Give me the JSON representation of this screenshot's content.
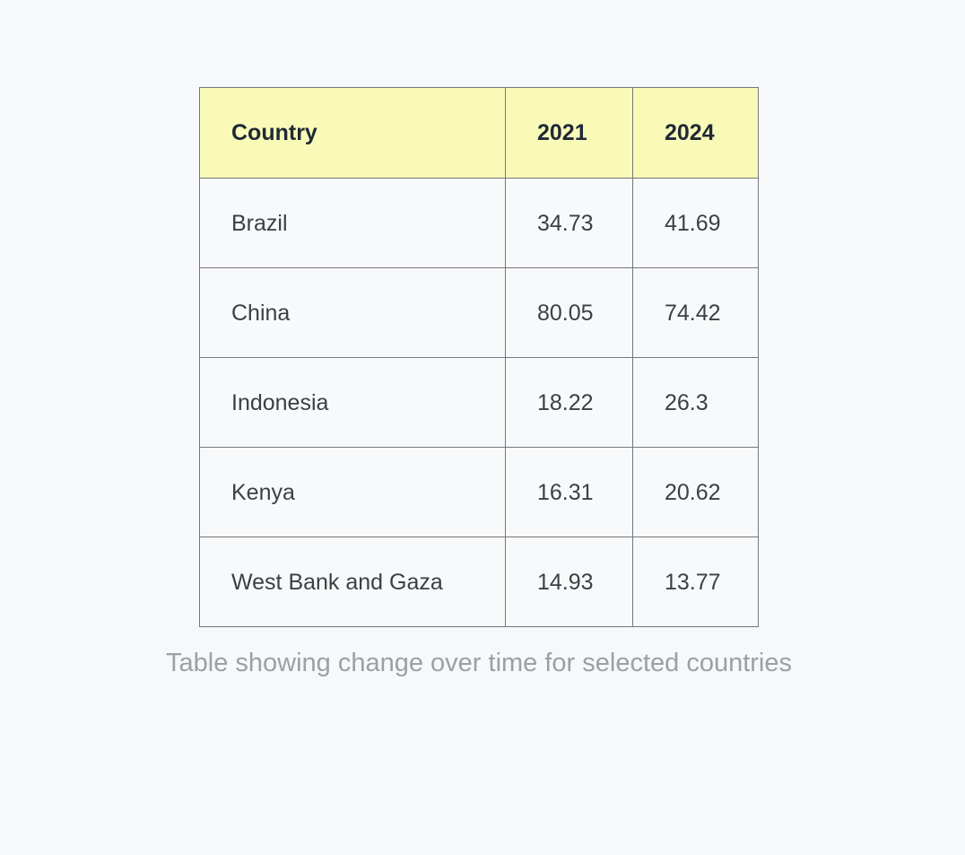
{
  "chart_data": {
    "type": "table",
    "columns": [
      "Country",
      "2021",
      "2024"
    ],
    "rows": [
      [
        "Brazil",
        34.73,
        41.69
      ],
      [
        "China",
        80.05,
        74.42
      ],
      [
        "Indonesia",
        18.22,
        26.3
      ],
      [
        "Kenya",
        16.31,
        20.62
      ],
      [
        "West Bank and Gaza",
        14.93,
        13.77
      ]
    ],
    "caption": "Table showing change over time for selected countries",
    "layout": {
      "header_position": "top",
      "grid": "on"
    }
  },
  "colors": {
    "page_background": "#f7f8fa",
    "cell_background": "#f8f9fa",
    "header_background": "#fafab8",
    "border": "#75787b",
    "header_text": "#1f2937",
    "body_text": "#3c4043",
    "caption_text": "#9aa0a6"
  }
}
